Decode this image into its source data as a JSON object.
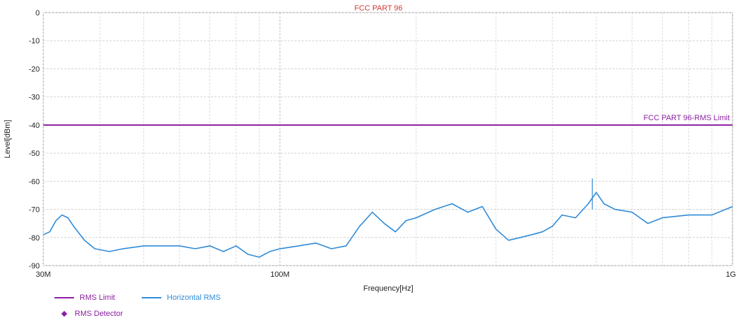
{
  "colors": {
    "limit": "#8a1fa0",
    "trace": "#2e8bd9",
    "title": "#d13a3a",
    "detector": "#8a1fa0"
  },
  "chart_data": {
    "type": "line",
    "title": "FCC PART 96",
    "xlabel": "Frequency[Hz]",
    "ylabel": "Level[dBm]",
    "xscale": "log",
    "xlim": [
      30000000,
      1000000000
    ],
    "ylim": [
      -90,
      0
    ],
    "grid": true,
    "x_tick_labels": [
      {
        "value": 30000000,
        "label": "30M"
      },
      {
        "value": 100000000,
        "label": "100M"
      },
      {
        "value": 1000000000,
        "label": "1G"
      }
    ],
    "y_ticks": [
      0,
      -10,
      -20,
      -30,
      -40,
      -50,
      -60,
      -70,
      -80,
      -90
    ],
    "limit_label": "FCC PART 96-RMS Limit",
    "series": [
      {
        "name": "RMS Limit",
        "color": "#8a1fa0",
        "x": [
          30000000,
          1000000000
        ],
        "y": [
          -40,
          -40
        ]
      },
      {
        "name": "Horizontal RMS",
        "color": "#2e8bd9",
        "x": [
          30000000,
          31000000,
          32000000,
          33000000,
          34000000,
          35000000,
          37000000,
          39000000,
          42000000,
          45000000,
          50000000,
          55000000,
          60000000,
          65000000,
          70000000,
          75000000,
          80000000,
          85000000,
          90000000,
          95000000,
          100000000,
          110000000,
          120000000,
          130000000,
          140000000,
          150000000,
          160000000,
          170000000,
          180000000,
          190000000,
          200000000,
          220000000,
          240000000,
          260000000,
          280000000,
          300000000,
          320000000,
          340000000,
          360000000,
          380000000,
          400000000,
          420000000,
          450000000,
          480000000,
          500000000,
          520000000,
          550000000,
          600000000,
          650000000,
          700000000,
          800000000,
          900000000,
          1000000000
        ],
        "y": [
          -79,
          -78,
          -74,
          -72,
          -73,
          -76,
          -81,
          -84,
          -85,
          -84,
          -83,
          -83,
          -83,
          -84,
          -83,
          -85,
          -83,
          -86,
          -87,
          -85,
          -84,
          -83,
          -82,
          -84,
          -83,
          -76,
          -71,
          -75,
          -78,
          -74,
          -73,
          -70,
          -68,
          -71,
          -69,
          -77,
          -81,
          -80,
          -79,
          -78,
          -76,
          -72,
          -73,
          -68,
          -64,
          -68,
          -70,
          -71,
          -75,
          -73,
          -72,
          -72,
          -69
        ]
      }
    ],
    "peak_marker": {
      "x": 490000000,
      "y": -59
    }
  },
  "legend": {
    "limit_label": "RMS Limit",
    "trace_label": "Horizontal RMS",
    "detector_label": "RMS Detector"
  }
}
